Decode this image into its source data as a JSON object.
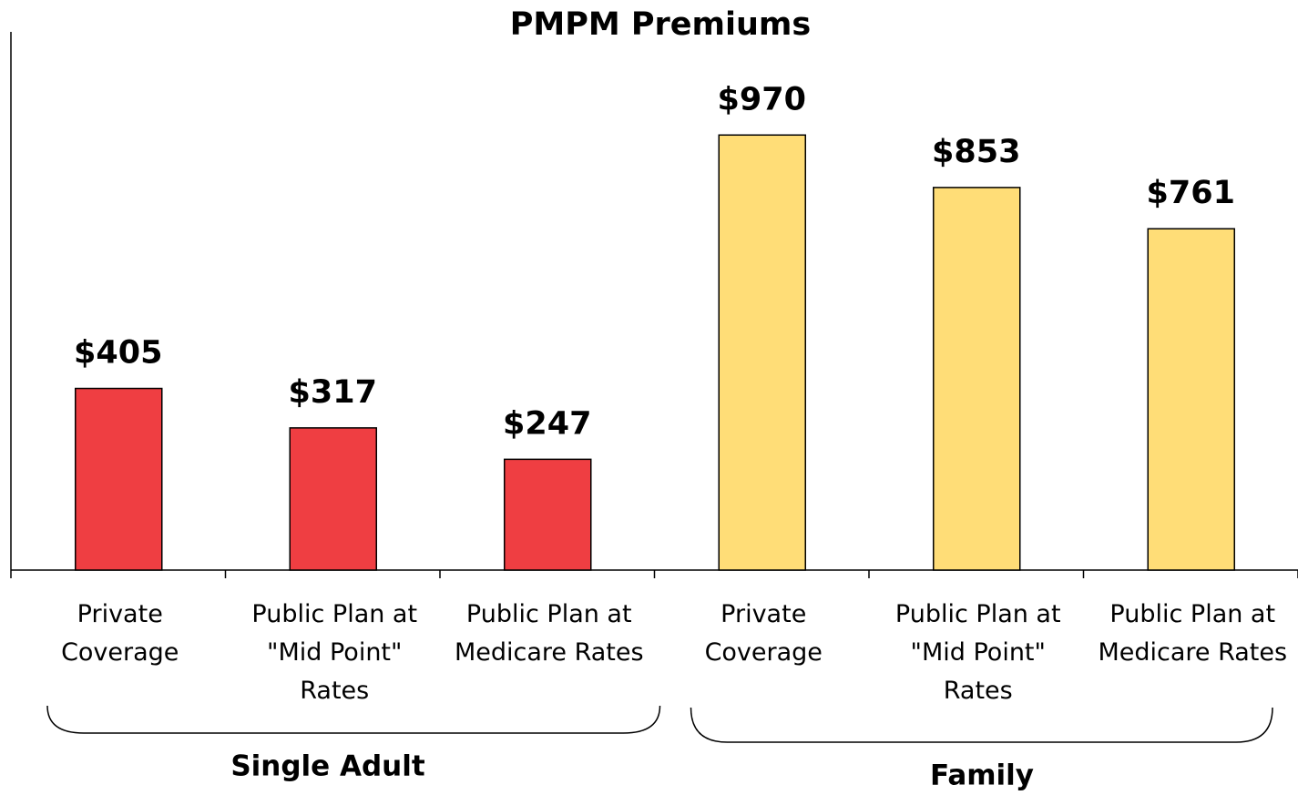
{
  "chart_data": {
    "type": "bar",
    "title": "PMPM Premiums",
    "categories": [
      "Private Coverage",
      "Public Plan at \"Mid Point\" Rates",
      "Public Plan at Medicare Rates",
      "Private Coverage",
      "Public Plan at \"Mid Point\" Rates",
      "Public Plan at Medicare Rates"
    ],
    "series": [
      {
        "name": "Single Adult",
        "color": "#ef3e42",
        "values": [
          405,
          317,
          247,
          null,
          null,
          null
        ],
        "value_labels": [
          "$405",
          "$317",
          "$247",
          null,
          null,
          null
        ]
      },
      {
        "name": "Family",
        "color": "#ffdd77",
        "values": [
          null,
          null,
          null,
          970,
          853,
          761
        ],
        "value_labels": [
          null,
          null,
          null,
          "$970",
          "$853",
          "$761"
        ]
      }
    ],
    "ylim": [
      0,
      1200
    ]
  }
}
